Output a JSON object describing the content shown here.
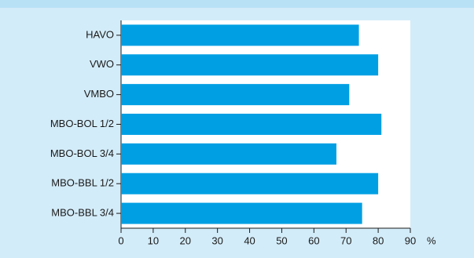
{
  "chart_data": {
    "type": "hbar",
    "categories": [
      "HAVO",
      "VWO",
      "VMBO",
      "MBO-BOL 1/2",
      "MBO-BOL 3/4",
      "MBO-BBL 1/2",
      "MBO-BBL 3/4"
    ],
    "values": [
      74,
      80,
      71,
      81,
      67,
      80,
      75
    ],
    "color": "#009fe3",
    "xlabel": "%",
    "xlim": [
      0,
      90
    ],
    "xticks": [
      0,
      10,
      20,
      30,
      40,
      50,
      60,
      70,
      80,
      90
    ]
  }
}
